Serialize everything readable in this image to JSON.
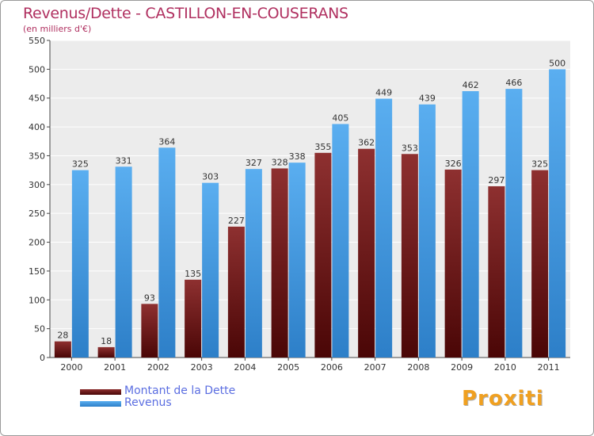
{
  "chart_data": {
    "type": "bar",
    "title": "Revenus/Dette - CASTILLON-EN-COUSERANS",
    "subtitle": "(en milliers d'€)",
    "categories": [
      "2000",
      "2001",
      "2002",
      "2003",
      "2004",
      "2005",
      "2006",
      "2007",
      "2008",
      "2009",
      "2010",
      "2011"
    ],
    "series": [
      {
        "name": "Montant de la Dette",
        "color": "#7a1a1a",
        "values": [
          28,
          18,
          93,
          135,
          227,
          328,
          355,
          362,
          353,
          326,
          297,
          325
        ]
      },
      {
        "name": "Revenus",
        "color": "#3f9ee6",
        "values": [
          325,
          331,
          364,
          303,
          327,
          338,
          405,
          449,
          439,
          462,
          466,
          500
        ]
      }
    ],
    "ylim": [
      0,
      550
    ],
    "yticks": [
      0,
      50,
      100,
      150,
      200,
      250,
      300,
      350,
      400,
      450,
      500,
      550
    ],
    "grid": true,
    "legend_position": "bottom-left"
  },
  "brand": "Proxiti"
}
